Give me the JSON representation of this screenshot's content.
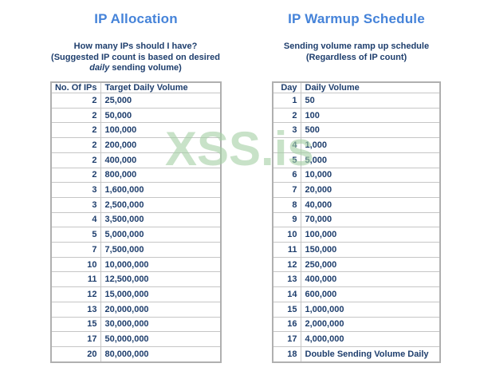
{
  "left_panel": {
    "title": "IP Allocation",
    "subtitle_line1": "How many IPs should I have?",
    "subtitle_line2": "(Suggested IP count is based on desired",
    "subtitle_line3_italic": "daily",
    "subtitle_line3_rest": " sending volume)",
    "table": {
      "headers": [
        "No. Of IPs",
        "Target Daily Volume"
      ],
      "rows": [
        [
          "2",
          "25,000"
        ],
        [
          "2",
          "50,000"
        ],
        [
          "2",
          "100,000"
        ],
        [
          "2",
          "200,000"
        ],
        [
          "2",
          "400,000"
        ],
        [
          "2",
          "800,000"
        ],
        [
          "3",
          "1,600,000"
        ],
        [
          "3",
          "2,500,000"
        ],
        [
          "4",
          "3,500,000"
        ],
        [
          "5",
          "5,000,000"
        ],
        [
          "7",
          "7,500,000"
        ],
        [
          "10",
          "10,000,000"
        ],
        [
          "11",
          "12,500,000"
        ],
        [
          "12",
          "15,000,000"
        ],
        [
          "13",
          "20,000,000"
        ],
        [
          "15",
          "30,000,000"
        ],
        [
          "17",
          "50,000,000"
        ],
        [
          "20",
          "80,000,000"
        ]
      ]
    }
  },
  "right_panel": {
    "title": "IP Warmup Schedule",
    "subtitle_line1": "Sending volume ramp up schedule",
    "subtitle_line2": "(Regardless of IP count)",
    "table": {
      "headers": [
        "Day",
        "Daily Volume"
      ],
      "rows": [
        [
          "1",
          "50"
        ],
        [
          "2",
          "100"
        ],
        [
          "3",
          "500"
        ],
        [
          "4",
          "1,000"
        ],
        [
          "5",
          "5,000"
        ],
        [
          "6",
          "10,000"
        ],
        [
          "7",
          "20,000"
        ],
        [
          "8",
          "40,000"
        ],
        [
          "9",
          "70,000"
        ],
        [
          "10",
          "100,000"
        ],
        [
          "11",
          "150,000"
        ],
        [
          "12",
          "250,000"
        ],
        [
          "13",
          "400,000"
        ],
        [
          "14",
          "600,000"
        ],
        [
          "15",
          "1,000,000"
        ],
        [
          "16",
          "2,000,000"
        ],
        [
          "17",
          "4,000,000"
        ],
        [
          "18",
          "Double Sending Volume Daily"
        ]
      ]
    }
  },
  "watermark": {
    "text": "XSS.is"
  },
  "colors": {
    "title_blue": "#4583d9",
    "text_navy": "#1e3e6d",
    "watermark_green": "#a6d1a6",
    "border_gray": "#b0b0b0"
  }
}
